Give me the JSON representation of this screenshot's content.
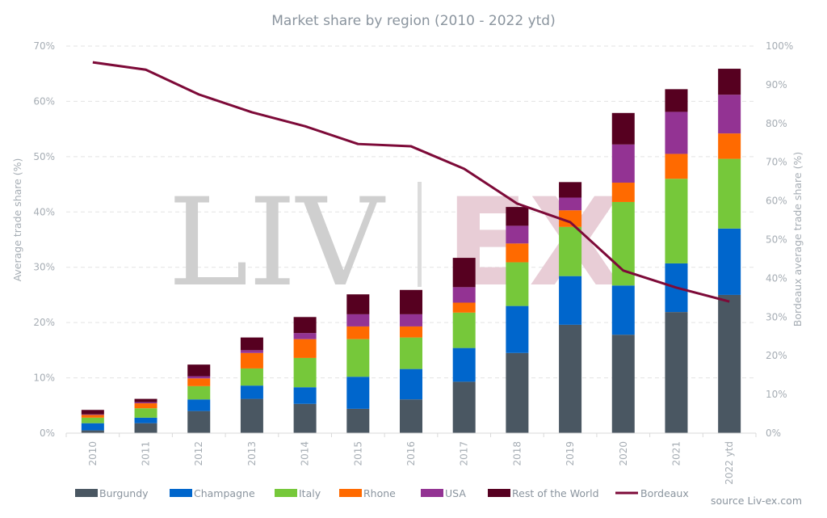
{
  "chart_data": {
    "type": "bar",
    "stacked": true,
    "title": "Market share by region (2010 - 2022 ytd)",
    "xlabel": "",
    "ylabel": "Average trade share (%)",
    "y2label": "Bordeaux average trade share (%)",
    "ylim": [
      0,
      70
    ],
    "y2lim": [
      0,
      100
    ],
    "yticks": [
      "0%",
      "10%",
      "20%",
      "30%",
      "40%",
      "50%",
      "60%",
      "70%"
    ],
    "y2ticks": [
      "0%",
      "10%",
      "20%",
      "30%",
      "40%",
      "50%",
      "60%",
      "70%",
      "80%",
      "90%",
      "100%"
    ],
    "grid": true,
    "legend_position": "bottom",
    "categories": [
      "2010",
      "2011",
      "2012",
      "2013",
      "2014",
      "2015",
      "2016",
      "2017",
      "2018",
      "2019",
      "2020",
      "2021",
      "2022 ytd"
    ],
    "series": [
      {
        "name": "Burgundy",
        "color": "#4a5762",
        "values": [
          0.5,
          1.8,
          4.0,
          6.2,
          5.3,
          4.4,
          6.1,
          9.3,
          14.5,
          19.6,
          17.8,
          21.9,
          25.0
        ]
      },
      {
        "name": "Champagne",
        "color": "#0066cc",
        "values": [
          1.3,
          1.0,
          2.1,
          2.4,
          3.0,
          5.8,
          5.5,
          6.1,
          8.5,
          8.8,
          8.9,
          8.8,
          12.0
        ]
      },
      {
        "name": "Italy",
        "color": "#76c83a",
        "values": [
          1.0,
          1.7,
          2.4,
          3.1,
          5.3,
          6.8,
          5.7,
          6.4,
          7.9,
          8.9,
          15.1,
          15.3,
          12.6
        ]
      },
      {
        "name": "Rhone",
        "color": "#ff6a00",
        "values": [
          0.5,
          0.9,
          1.4,
          2.8,
          3.4,
          2.3,
          2.0,
          1.8,
          3.4,
          3.0,
          3.5,
          4.5,
          4.6
        ]
      },
      {
        "name": "USA",
        "color": "#933393",
        "values": [
          0.1,
          0.2,
          0.4,
          0.5,
          1.1,
          2.2,
          2.2,
          2.8,
          3.2,
          2.3,
          6.9,
          7.6,
          7.0
        ]
      },
      {
        "name": "Rest of the World",
        "color": "#560020",
        "values": [
          0.8,
          0.6,
          2.1,
          2.3,
          2.9,
          3.6,
          4.4,
          5.3,
          3.4,
          2.8,
          5.7,
          4.1,
          4.7
        ]
      }
    ],
    "line_series": {
      "name": "Bordeaux",
      "axis": "right",
      "color": "#7d0a38",
      "values": [
        95.8,
        93.9,
        87.5,
        82.9,
        79.3,
        74.7,
        74.1,
        68.3,
        59.3,
        54.5,
        42.0,
        37.6,
        34.0
      ]
    },
    "source": "source Liv-ex.com"
  },
  "watermark": {
    "left": "LIV",
    "right": "EX"
  }
}
